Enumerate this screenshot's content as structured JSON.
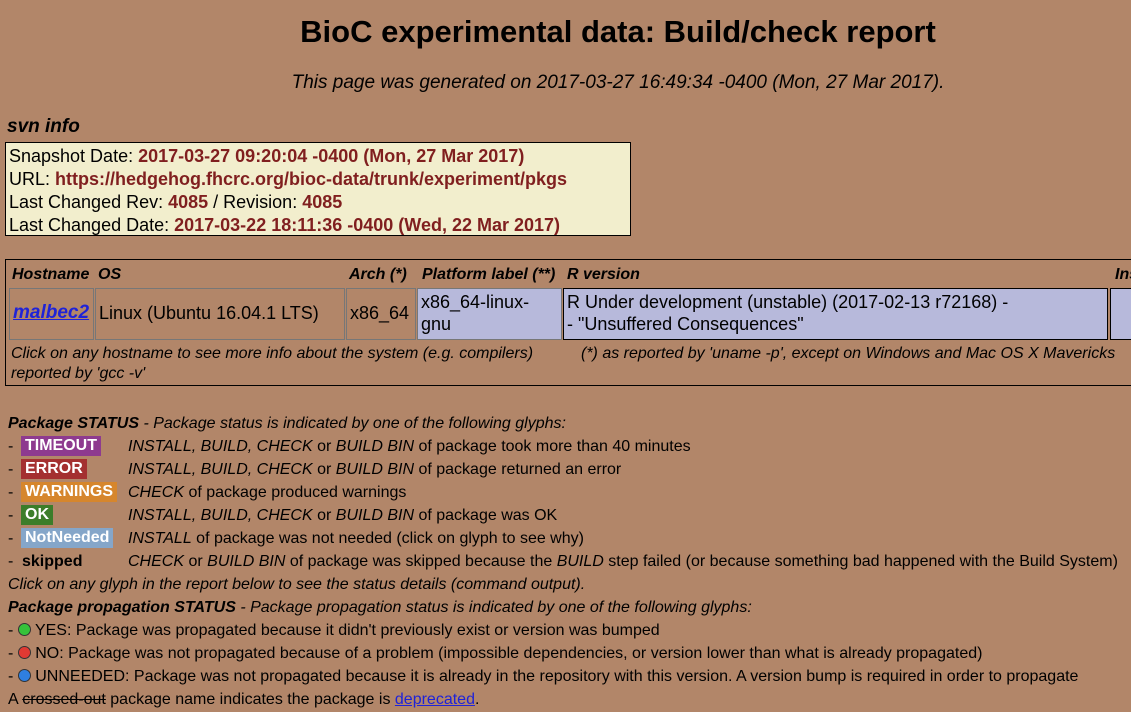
{
  "page": {
    "title": "BioC experimental data: Build/check report",
    "generated": "This page was generated on 2017-03-27 16:49:34 -0400 (Mon, 27 Mar 2017)."
  },
  "svn": {
    "heading": "svn info",
    "snapshot_label": "Snapshot Date: ",
    "snapshot_value": "2017-03-27 09:20:04 -0400 (Mon, 27 Mar 2017)",
    "url_label": "URL: ",
    "url_value": "https://hedgehog.fhcrc.org/bioc-data/trunk/experiment/pkgs",
    "rev_label": "Last Changed Rev: ",
    "rev_value": "4085",
    "revision_label": " / Revision: ",
    "revision_value": "4085",
    "date_label": "Last Changed Date: ",
    "date_value": "2017-03-22 18:11:36 -0400 (Wed, 22 Mar 2017)"
  },
  "hosts": {
    "headers": {
      "hostname": "Hostname",
      "os": "OS",
      "arch": "Arch (*)",
      "platform": "Platform label (**)",
      "rversion": "R version",
      "installed": "Ins"
    },
    "row": {
      "hostname": "malbec2",
      "os": "Linux (Ubuntu 16.04.1 LTS)",
      "arch": "x86_64",
      "platform_line1": "x86_64-linux-",
      "platform_line2": "gnu",
      "rversion_line1": "R Under development (unstable) (2017-02-13 r72168) -",
      "rversion_line2": "- \"Unsuffered Consequences\""
    },
    "note_left_1": "Click on any hostname to see more info about the system (e.g. compilers)",
    "note_left_2": "reported by 'gcc -v'",
    "note_right": "(*) as reported by 'uname -p', except on Windows and Mac OS X Mavericks"
  },
  "status": {
    "heading": "Package STATUS",
    "intro": " - Package status is indicated by one of the following glyphs:",
    "items": [
      {
        "glyph": "TIMEOUT",
        "color": "#8e3a8f",
        "desc_a": "INSTALL, BUILD, CHECK",
        "desc_b": " or ",
        "desc_c": "BUILD BIN",
        "desc_d": " of package took more than 40 minutes"
      },
      {
        "glyph": "ERROR",
        "color": "#a43030",
        "desc_a": "INSTALL, BUILD, CHECK",
        "desc_b": " or ",
        "desc_c": "BUILD BIN",
        "desc_d": " of package returned an error"
      },
      {
        "glyph": "WARNINGS",
        "color": "#d6862d",
        "desc_a": "CHECK",
        "desc_b": " of package produced warnings",
        "desc_c": "",
        "desc_d": ""
      },
      {
        "glyph": "OK",
        "color": "#3c7d2a",
        "desc_a": "INSTALL, BUILD, CHECK",
        "desc_b": " or ",
        "desc_c": "BUILD BIN",
        "desc_d": " of package was OK"
      },
      {
        "glyph": "NotNeeded",
        "color": "#85a6c9",
        "desc_a": "INSTALL",
        "desc_b": " of package was not needed (click on glyph to see why)",
        "desc_c": "",
        "desc_d": ""
      }
    ],
    "skipped_label": "skipped",
    "skipped_a": "CHECK",
    "skipped_b": " or ",
    "skipped_c": "BUILD BIN",
    "skipped_d": " of package was skipped because the ",
    "skipped_e": "BUILD",
    "skipped_f": " step failed (or because something bad happened with the Build System)",
    "click_note": "Click on any glyph in the report below to see the status details (command output)."
  },
  "propagation": {
    "heading": "Package propagation STATUS",
    "intro": " - Package propagation status is indicated by one of the following glyphs:",
    "items": [
      {
        "color": "#36c23a",
        "text": " YES: Package was propagated because it didn't previously exist or version was bumped"
      },
      {
        "color": "#e03a33",
        "text": " NO: Package was not propagated because of a problem (impossible dependencies, or version lower than what is already propagated)"
      },
      {
        "color": "#2f7fe0",
        "text": " UNNEEDED: Package was not propagated because it is already in the repository with this version. A version bump is required in order to propagate"
      }
    ],
    "crossed_a": "A ",
    "crossed_word": "crossed-out",
    "crossed_b": " package name indicates the package is ",
    "deprecated_link": "deprecated",
    "crossed_end": "."
  }
}
